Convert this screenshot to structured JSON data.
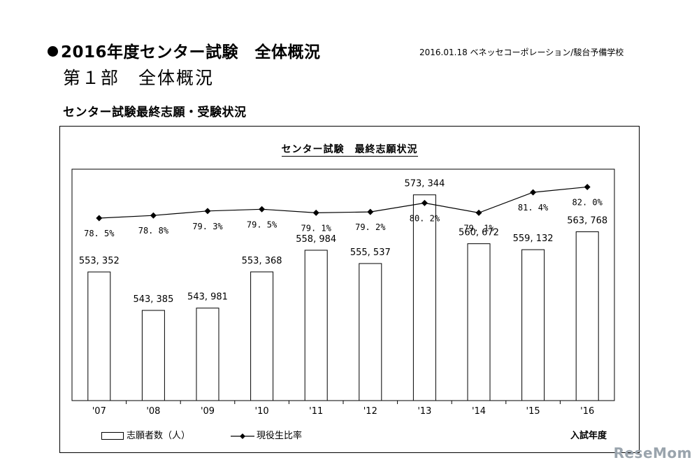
{
  "page": {
    "title": "2016年度センター試験　全体概況",
    "date_source": "2016.01.18 ベネッセコーポレーション/駿台予備学校",
    "part_title": "第１部　全体概況",
    "section_title": "センター試験最終志願・受験状況",
    "watermark": "ReseMom"
  },
  "chart_data": {
    "type": "bar",
    "title": "センター試験　最終志願状況",
    "xlabel": "入試年度",
    "ylabel": "",
    "categories": [
      "'07",
      "'08",
      "'09",
      "'10",
      "'11",
      "'12",
      "'13",
      "'14",
      "'15",
      "'16"
    ],
    "series": [
      {
        "name": "志願者数（人）",
        "type": "bar",
        "values": [
          553352,
          543385,
          543981,
          553368,
          558984,
          555537,
          573344,
          560672,
          559132,
          563768
        ],
        "labels": [
          "553, 352",
          "543, 385",
          "543, 981",
          "553, 368",
          "558, 984",
          "555, 537",
          "573, 344",
          "560, 672",
          "559, 132",
          "563, 768"
        ]
      },
      {
        "name": "現役生比率",
        "type": "line",
        "values": [
          78.5,
          78.8,
          79.3,
          79.5,
          79.1,
          79.2,
          80.2,
          79.1,
          81.4,
          82.0
        ],
        "labels": [
          "78. 5%",
          "78. 8%",
          "79. 3%",
          "79. 5%",
          "79. 1%",
          "79. 2%",
          "80. 2%",
          "79. 1%",
          "81. 4%",
          "82. 0%"
        ]
      }
    ],
    "bar_ylim": [
      520000,
      580000
    ],
    "line_ylim": [
      58,
      84
    ],
    "grid": false,
    "legend_position": "bottom-left"
  }
}
